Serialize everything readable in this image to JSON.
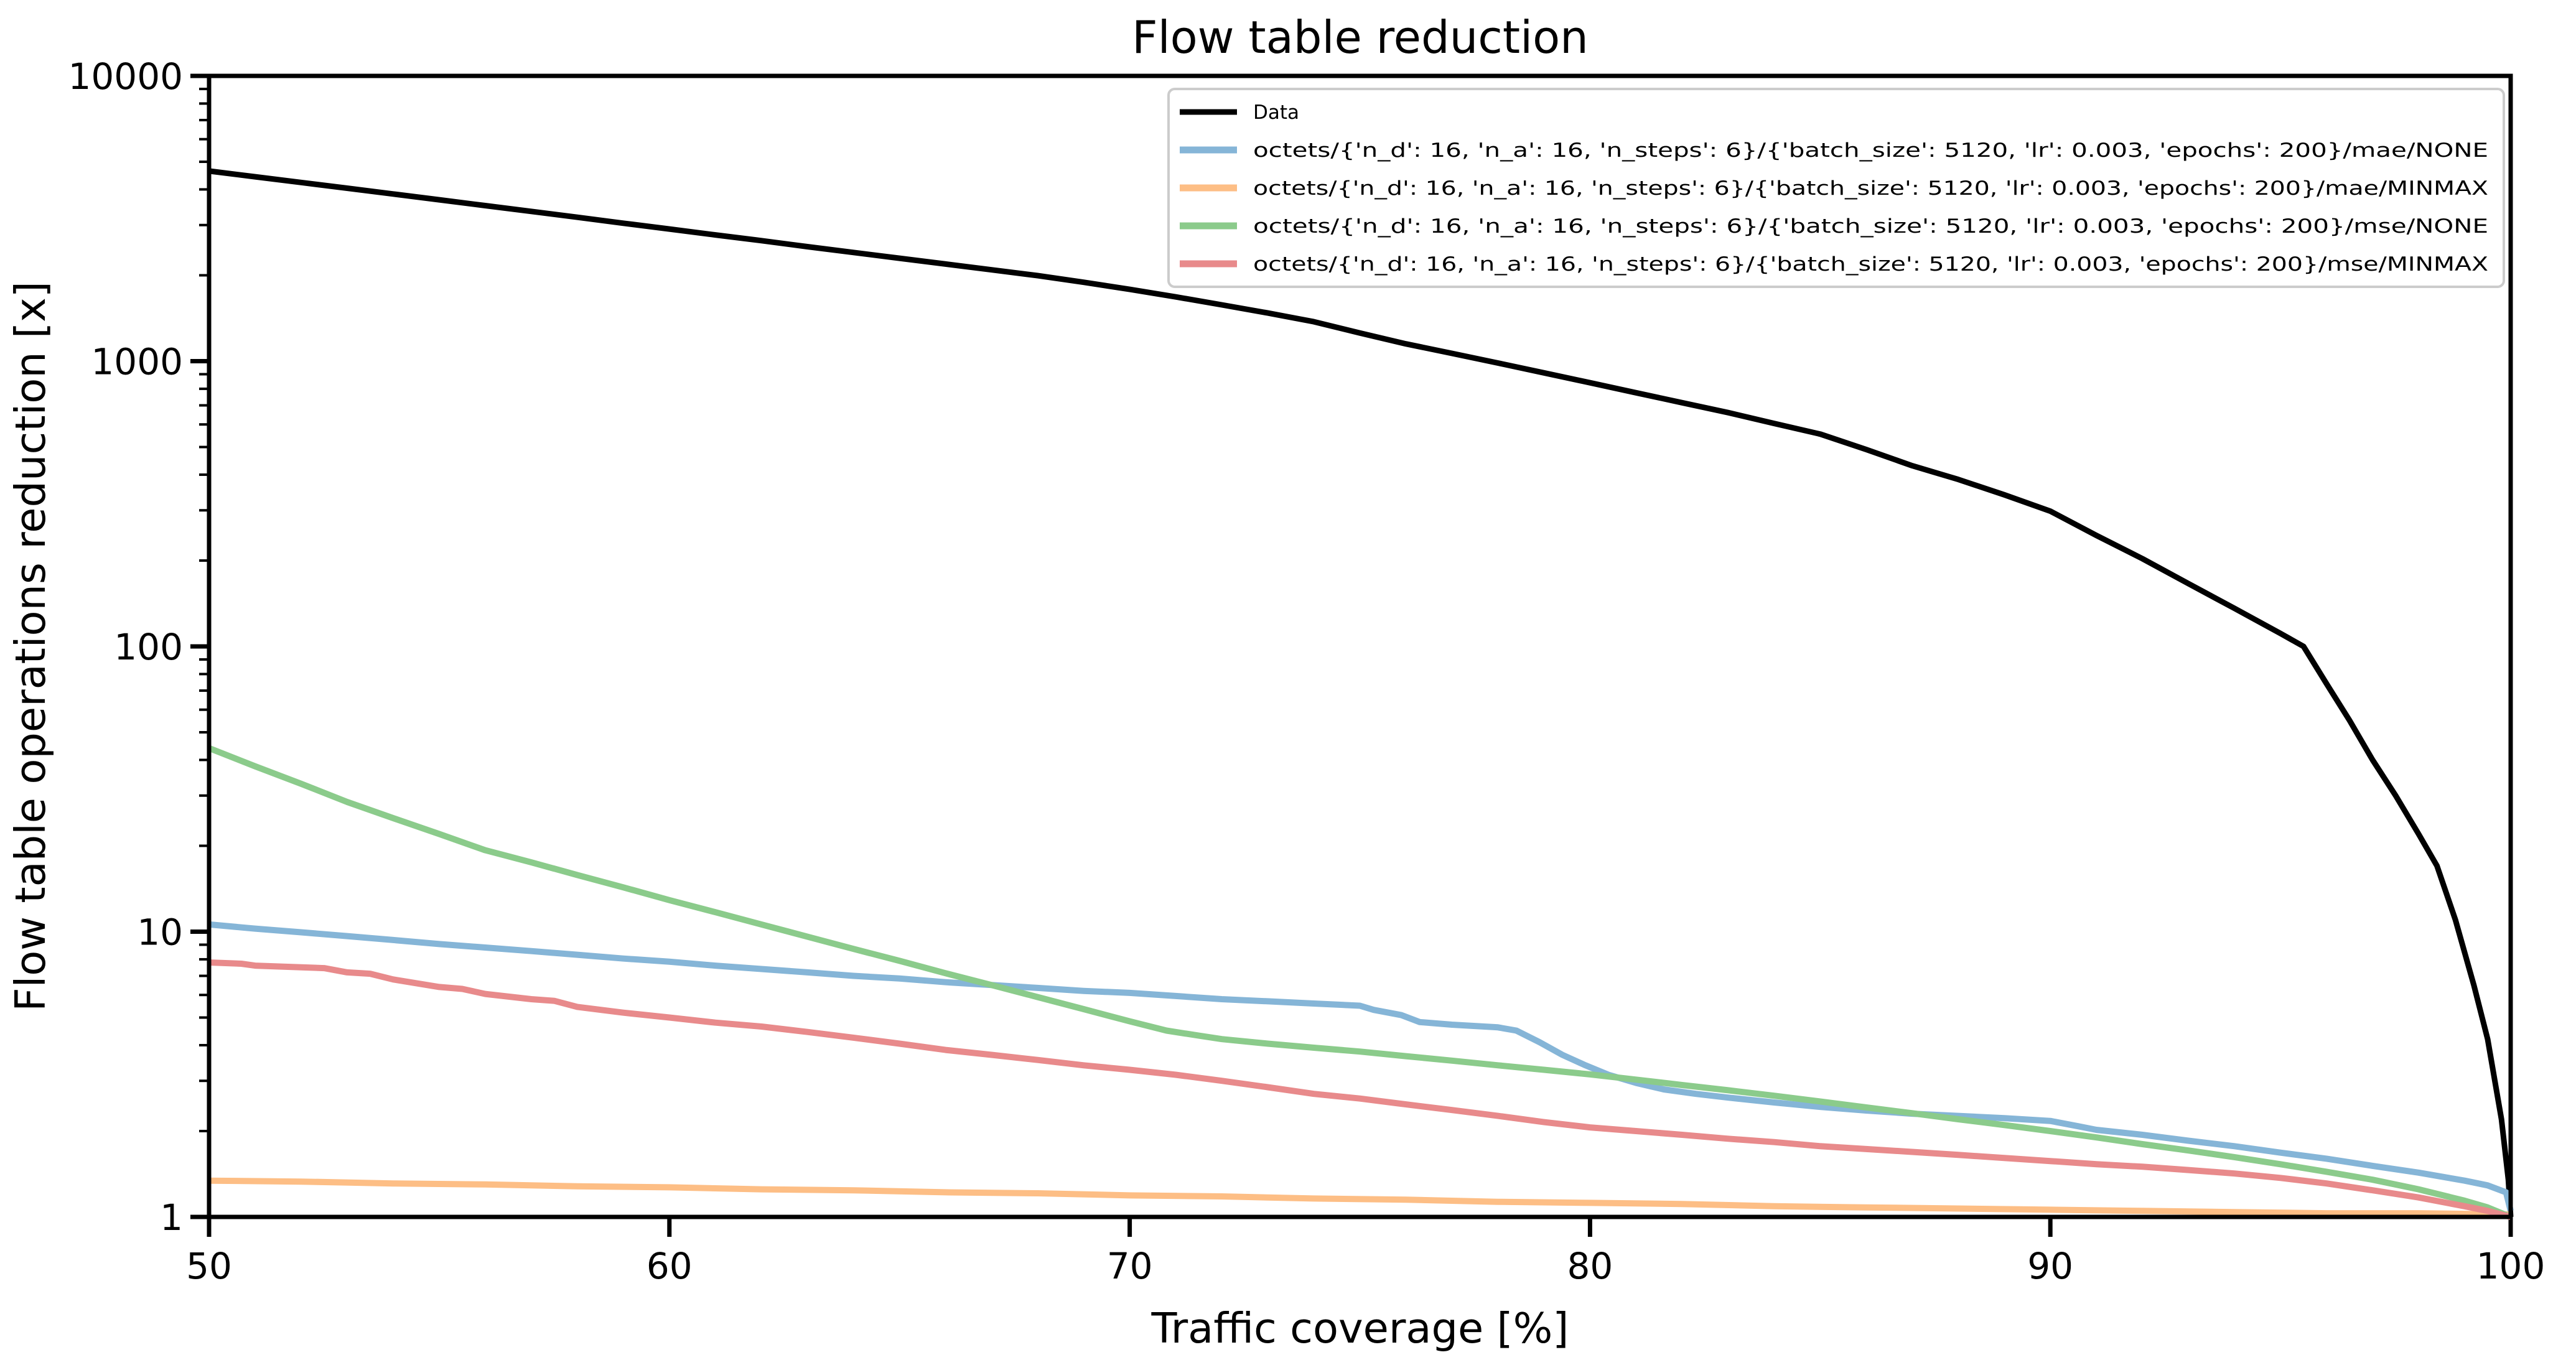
{
  "chart_data": {
    "type": "line",
    "title": "Flow table reduction",
    "xlabel": "Traffic coverage [%]",
    "ylabel": "Flow table operations reduction [x]",
    "x_axis": {
      "min": 50,
      "max": 100,
      "ticks": [
        50,
        60,
        70,
        80,
        90,
        100
      ],
      "scale": "linear"
    },
    "y_axis": {
      "min": 1,
      "max": 10000,
      "ticks": [
        1,
        10,
        100,
        1000,
        10000
      ],
      "tick_labels": [
        "1",
        "10",
        "100",
        "1000",
        "10000"
      ],
      "scale": "log"
    },
    "grid": false,
    "legend": {
      "position": "upper right",
      "border_color": "#cccccc",
      "background": "#ffffff"
    },
    "axis_color": "#000000",
    "series": [
      {
        "name": "Data",
        "color": "#000000",
        "line_width": 9,
        "points": [
          [
            50,
            4640
          ],
          [
            51,
            4430
          ],
          [
            52,
            4230
          ],
          [
            53,
            4040
          ],
          [
            54,
            3855
          ],
          [
            55,
            3680
          ],
          [
            56,
            3510
          ],
          [
            57,
            3350
          ],
          [
            58,
            3195
          ],
          [
            59,
            3045
          ],
          [
            60,
            2905
          ],
          [
            61,
            2770
          ],
          [
            62,
            2645
          ],
          [
            63,
            2520
          ],
          [
            64,
            2405
          ],
          [
            65,
            2295
          ],
          [
            66,
            2190
          ],
          [
            67,
            2090
          ],
          [
            68,
            1995
          ],
          [
            69,
            1890
          ],
          [
            70,
            1785
          ],
          [
            71,
            1680
          ],
          [
            72,
            1575
          ],
          [
            73,
            1475
          ],
          [
            74,
            1375
          ],
          [
            75,
            1255
          ],
          [
            76,
            1150
          ],
          [
            77,
            1065
          ],
          [
            78,
            985
          ],
          [
            79,
            910
          ],
          [
            80,
            840
          ],
          [
            81,
            775
          ],
          [
            82,
            715
          ],
          [
            83,
            660
          ],
          [
            84,
            605
          ],
          [
            85,
            555
          ],
          [
            86,
            490
          ],
          [
            87,
            430
          ],
          [
            88,
            385
          ],
          [
            89,
            340
          ],
          [
            90,
            298
          ],
          [
            91,
            245
          ],
          [
            92,
            203
          ],
          [
            93,
            166
          ],
          [
            94,
            136
          ],
          [
            95,
            111
          ],
          [
            95.5,
            100
          ],
          [
            96,
            74
          ],
          [
            96.5,
            55
          ],
          [
            97,
            40
          ],
          [
            97.5,
            30
          ],
          [
            98,
            22
          ],
          [
            98.4,
            17
          ],
          [
            98.8,
            11
          ],
          [
            99.2,
            6.5
          ],
          [
            99.5,
            4.2
          ],
          [
            99.8,
            2.2
          ],
          [
            99.95,
            1.35
          ],
          [
            100,
            1.0
          ]
        ]
      },
      {
        "name": "octets/{'n_d': 16, 'n_a': 16, 'n_steps': 6}/{'batch_size': 5120, 'lr': 0.003, 'epochs': 200}/mae/NONE",
        "color": "#85b5d7",
        "line_width": 10,
        "points": [
          [
            50,
            10.6
          ],
          [
            51,
            10.25
          ],
          [
            52,
            9.95
          ],
          [
            53,
            9.65
          ],
          [
            54,
            9.35
          ],
          [
            55,
            9.05
          ],
          [
            56,
            8.8
          ],
          [
            57,
            8.55
          ],
          [
            58,
            8.3
          ],
          [
            59,
            8.05
          ],
          [
            60,
            7.85
          ],
          [
            61,
            7.6
          ],
          [
            62,
            7.4
          ],
          [
            63,
            7.2
          ],
          [
            64,
            7.0
          ],
          [
            65,
            6.85
          ],
          [
            66,
            6.65
          ],
          [
            67,
            6.5
          ],
          [
            68,
            6.35
          ],
          [
            69,
            6.2
          ],
          [
            70,
            6.1
          ],
          [
            71,
            5.95
          ],
          [
            72,
            5.8
          ],
          [
            73,
            5.7
          ],
          [
            74,
            5.6
          ],
          [
            75,
            5.5
          ],
          [
            75.3,
            5.32
          ],
          [
            75.9,
            5.1
          ],
          [
            76.3,
            4.82
          ],
          [
            77,
            4.72
          ],
          [
            78,
            4.62
          ],
          [
            78.4,
            4.5
          ],
          [
            78.9,
            4.1
          ],
          [
            79.4,
            3.7
          ],
          [
            79.9,
            3.4
          ],
          [
            80.4,
            3.15
          ],
          [
            81,
            2.95
          ],
          [
            81.6,
            2.8
          ],
          [
            82.3,
            2.7
          ],
          [
            83,
            2.62
          ],
          [
            84,
            2.52
          ],
          [
            85,
            2.43
          ],
          [
            86,
            2.36
          ],
          [
            87,
            2.3
          ],
          [
            88,
            2.26
          ],
          [
            89,
            2.22
          ],
          [
            90,
            2.17
          ],
          [
            90.6,
            2.08
          ],
          [
            91,
            2.02
          ],
          [
            92,
            1.94
          ],
          [
            93,
            1.85
          ],
          [
            94,
            1.77
          ],
          [
            95,
            1.68
          ],
          [
            96,
            1.6
          ],
          [
            97,
            1.51
          ],
          [
            98,
            1.43
          ],
          [
            99,
            1.34
          ],
          [
            99.5,
            1.29
          ],
          [
            99.9,
            1.22
          ],
          [
            100,
            1.05
          ]
        ]
      },
      {
        "name": "octets/{'n_d': 16, 'n_a': 16, 'n_steps': 6}/{'batch_size': 5120, 'lr': 0.003, 'epochs': 200}/mae/MINMAX",
        "color": "#fdbe85",
        "line_width": 10,
        "points": [
          [
            50,
            1.34
          ],
          [
            52,
            1.33
          ],
          [
            54,
            1.31
          ],
          [
            56,
            1.3
          ],
          [
            58,
            1.28
          ],
          [
            60,
            1.27
          ],
          [
            62,
            1.25
          ],
          [
            64,
            1.24
          ],
          [
            66,
            1.22
          ],
          [
            68,
            1.21
          ],
          [
            70,
            1.19
          ],
          [
            72,
            1.18
          ],
          [
            74,
            1.16
          ],
          [
            76,
            1.15
          ],
          [
            78,
            1.13
          ],
          [
            80,
            1.12
          ],
          [
            82,
            1.11
          ],
          [
            84,
            1.09
          ],
          [
            86,
            1.08
          ],
          [
            88,
            1.07
          ],
          [
            90,
            1.06
          ],
          [
            92,
            1.05
          ],
          [
            94,
            1.04
          ],
          [
            96,
            1.03
          ],
          [
            98,
            1.03
          ],
          [
            100,
            1.02
          ]
        ]
      },
      {
        "name": "octets/{'n_d': 16, 'n_a': 16, 'n_steps': 6}/{'batch_size': 5120, 'lr': 0.003, 'epochs': 200}/mse/NONE",
        "color": "#8bcb8b",
        "line_width": 10,
        "points": [
          [
            50,
            44
          ],
          [
            51,
            38
          ],
          [
            52,
            33
          ],
          [
            53,
            28.5
          ],
          [
            54,
            25
          ],
          [
            55,
            22
          ],
          [
            56,
            19.3
          ],
          [
            57,
            17.5
          ],
          [
            58,
            15.8
          ],
          [
            59,
            14.3
          ],
          [
            60,
            12.9
          ],
          [
            61,
            11.7
          ],
          [
            62,
            10.6
          ],
          [
            63,
            9.6
          ],
          [
            64,
            8.7
          ],
          [
            65,
            7.9
          ],
          [
            66,
            7.15
          ],
          [
            67,
            6.5
          ],
          [
            68,
            5.9
          ],
          [
            69,
            5.35
          ],
          [
            70,
            4.85
          ],
          [
            70.8,
            4.5
          ],
          [
            71.5,
            4.32
          ],
          [
            72,
            4.2
          ],
          [
            73,
            4.05
          ],
          [
            74,
            3.92
          ],
          [
            75,
            3.8
          ],
          [
            76,
            3.66
          ],
          [
            77,
            3.53
          ],
          [
            78,
            3.4
          ],
          [
            79,
            3.28
          ],
          [
            80,
            3.16
          ],
          [
            81,
            3.03
          ],
          [
            82,
            2.9
          ],
          [
            83,
            2.78
          ],
          [
            84,
            2.66
          ],
          [
            85,
            2.54
          ],
          [
            86,
            2.42
          ],
          [
            87,
            2.31
          ],
          [
            88,
            2.2
          ],
          [
            89,
            2.1
          ],
          [
            90,
            2.0
          ],
          [
            91,
            1.9
          ],
          [
            92,
            1.8
          ],
          [
            93,
            1.71
          ],
          [
            94,
            1.62
          ],
          [
            95,
            1.53
          ],
          [
            96,
            1.44
          ],
          [
            97,
            1.35
          ],
          [
            98,
            1.25
          ],
          [
            99,
            1.14
          ],
          [
            99.5,
            1.08
          ],
          [
            100,
            1.0
          ]
        ]
      },
      {
        "name": "octets/{'n_d': 16, 'n_a': 16, 'n_steps': 6}/{'batch_size': 5120, 'lr': 0.003, 'epochs': 200}/mse/MINMAX",
        "color": "#e88a8b",
        "line_width": 10,
        "points": [
          [
            50,
            7.8
          ],
          [
            50.7,
            7.72
          ],
          [
            51,
            7.6
          ],
          [
            52,
            7.5
          ],
          [
            52.5,
            7.45
          ],
          [
            53,
            7.2
          ],
          [
            53.5,
            7.12
          ],
          [
            54,
            6.8
          ],
          [
            55,
            6.4
          ],
          [
            55.5,
            6.3
          ],
          [
            56,
            6.05
          ],
          [
            57,
            5.8
          ],
          [
            57.5,
            5.72
          ],
          [
            58,
            5.45
          ],
          [
            59,
            5.2
          ],
          [
            60,
            5.0
          ],
          [
            61,
            4.8
          ],
          [
            62,
            4.65
          ],
          [
            63,
            4.45
          ],
          [
            64,
            4.25
          ],
          [
            65,
            4.05
          ],
          [
            66,
            3.85
          ],
          [
            67,
            3.7
          ],
          [
            68,
            3.55
          ],
          [
            69,
            3.4
          ],
          [
            70,
            3.28
          ],
          [
            71,
            3.15
          ],
          [
            72,
            3.0
          ],
          [
            73,
            2.85
          ],
          [
            74,
            2.7
          ],
          [
            75,
            2.6
          ],
          [
            76,
            2.48
          ],
          [
            77,
            2.37
          ],
          [
            78,
            2.26
          ],
          [
            79,
            2.15
          ],
          [
            80,
            2.06
          ],
          [
            81,
            2.0
          ],
          [
            82,
            1.94
          ],
          [
            83,
            1.88
          ],
          [
            84,
            1.83
          ],
          [
            85,
            1.77
          ],
          [
            86,
            1.73
          ],
          [
            87,
            1.69
          ],
          [
            88,
            1.65
          ],
          [
            89,
            1.61
          ],
          [
            90,
            1.57
          ],
          [
            91,
            1.53
          ],
          [
            92,
            1.5
          ],
          [
            93,
            1.46
          ],
          [
            94,
            1.42
          ],
          [
            95,
            1.37
          ],
          [
            96,
            1.31
          ],
          [
            97,
            1.24
          ],
          [
            98,
            1.17
          ],
          [
            99,
            1.09
          ],
          [
            99.5,
            1.05
          ],
          [
            100,
            1.0
          ]
        ]
      }
    ]
  }
}
